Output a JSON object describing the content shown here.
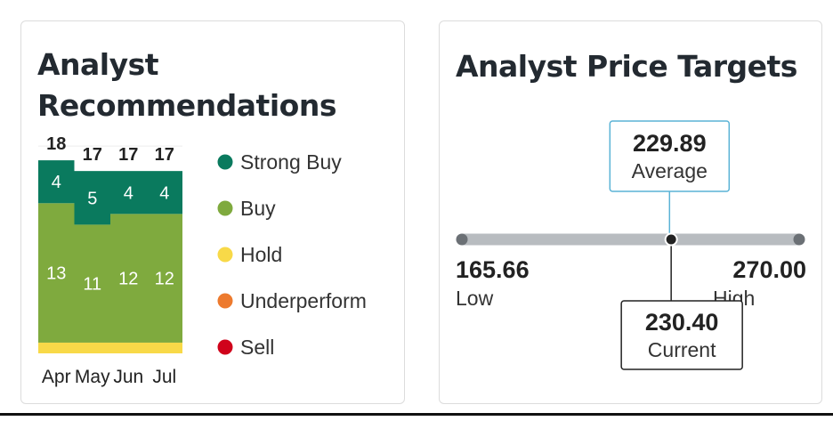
{
  "recommendations": {
    "title": "Analyst Recommendations",
    "chart_data": {
      "type": "bar",
      "stacked": true,
      "categories": [
        "Apr",
        "May",
        "Jun",
        "Jul"
      ],
      "totals": [
        18,
        17,
        17,
        17
      ],
      "series": [
        {
          "name": "Strong Buy",
          "color": "#0a7a5e",
          "values": [
            4,
            5,
            4,
            4
          ]
        },
        {
          "name": "Buy",
          "color": "#7faa3e",
          "values": [
            13,
            11,
            12,
            12
          ]
        },
        {
          "name": "Hold",
          "color": "#f8d948",
          "values": [
            1,
            1,
            1,
            1
          ]
        },
        {
          "name": "Underperform",
          "color": "#ed7a2e",
          "values": [
            0,
            0,
            0,
            0
          ]
        },
        {
          "name": "Sell",
          "color": "#d0021b",
          "values": [
            0,
            0,
            0,
            0
          ]
        }
      ],
      "legend_position": "right"
    }
  },
  "price_targets": {
    "title": "Analyst Price Targets",
    "low": {
      "value": "165.66",
      "label": "Low",
      "number": 165.66
    },
    "high": {
      "value": "270.00",
      "label": "High",
      "number": 270.0
    },
    "average": {
      "value": "229.89",
      "label": "Average",
      "number": 229.89
    },
    "current": {
      "value": "230.40",
      "label": "Current",
      "number": 230.4
    },
    "colors": {
      "track": "#b8bcc0",
      "average_box": "#5ab3d6",
      "current_box": "#222222"
    }
  }
}
